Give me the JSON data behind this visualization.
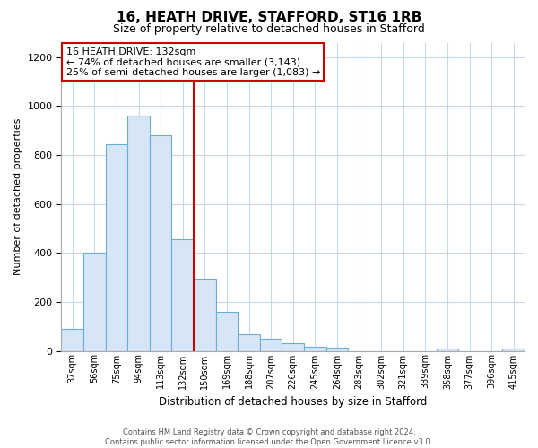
{
  "title": "16, HEATH DRIVE, STAFFORD, ST16 1RB",
  "subtitle": "Size of property relative to detached houses in Stafford",
  "xlabel": "Distribution of detached houses by size in Stafford",
  "ylabel": "Number of detached properties",
  "bar_labels": [
    "37sqm",
    "56sqm",
    "75sqm",
    "94sqm",
    "113sqm",
    "132sqm",
    "150sqm",
    "169sqm",
    "188sqm",
    "207sqm",
    "226sqm",
    "245sqm",
    "264sqm",
    "283sqm",
    "302sqm",
    "321sqm",
    "339sqm",
    "358sqm",
    "377sqm",
    "396sqm",
    "415sqm"
  ],
  "bar_values": [
    90,
    400,
    845,
    960,
    880,
    455,
    295,
    160,
    68,
    50,
    32,
    18,
    12,
    0,
    0,
    0,
    0,
    10,
    0,
    0,
    10
  ],
  "bar_color": "#d6e6f7",
  "bar_edge_color": "#6aaed6",
  "highlight_index": 5,
  "highlight_line_color": "#cc0000",
  "ylim": [
    0,
    1260
  ],
  "yticks": [
    0,
    200,
    400,
    600,
    800,
    1000,
    1200
  ],
  "annotation_title": "16 HEATH DRIVE: 132sqm",
  "annotation_line1": "← 74% of detached houses are smaller (3,143)",
  "annotation_line2": "25% of semi-detached houses are larger (1,083) →",
  "annotation_box_color": "#ffffff",
  "annotation_box_edge": "#cc0000",
  "footer_line1": "Contains HM Land Registry data © Crown copyright and database right 2024.",
  "footer_line2": "Contains public sector information licensed under the Open Government Licence v3.0.",
  "bg_color": "#ffffff",
  "grid_color": "#c8d8e8"
}
